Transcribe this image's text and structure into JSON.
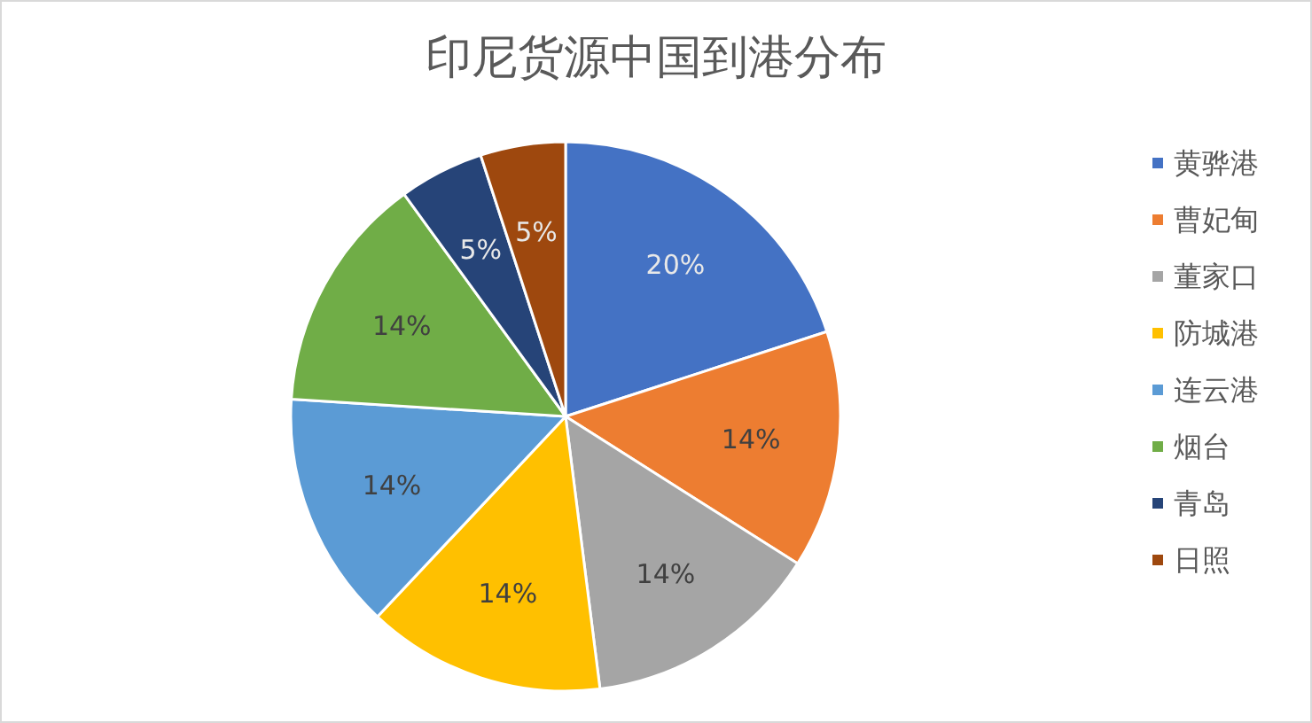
{
  "chart_data": {
    "type": "pie",
    "title": "印尼货源中国到港分布",
    "categories": [
      "黄骅港",
      "曹妃甸",
      "董家口",
      "防城港",
      "连云港",
      "烟台",
      "青岛",
      "日照"
    ],
    "values": [
      20,
      14,
      14,
      14,
      14,
      14,
      5,
      5
    ],
    "value_labels": [
      "20%",
      "14%",
      "14%",
      "14%",
      "14%",
      "14%",
      "5%",
      "5%"
    ],
    "colors": [
      "#4472c4",
      "#ed7d31",
      "#a5a5a5",
      "#ffc000",
      "#5b9bd5",
      "#70ad47",
      "#264478",
      "#9e480e"
    ],
    "legend": "right"
  }
}
